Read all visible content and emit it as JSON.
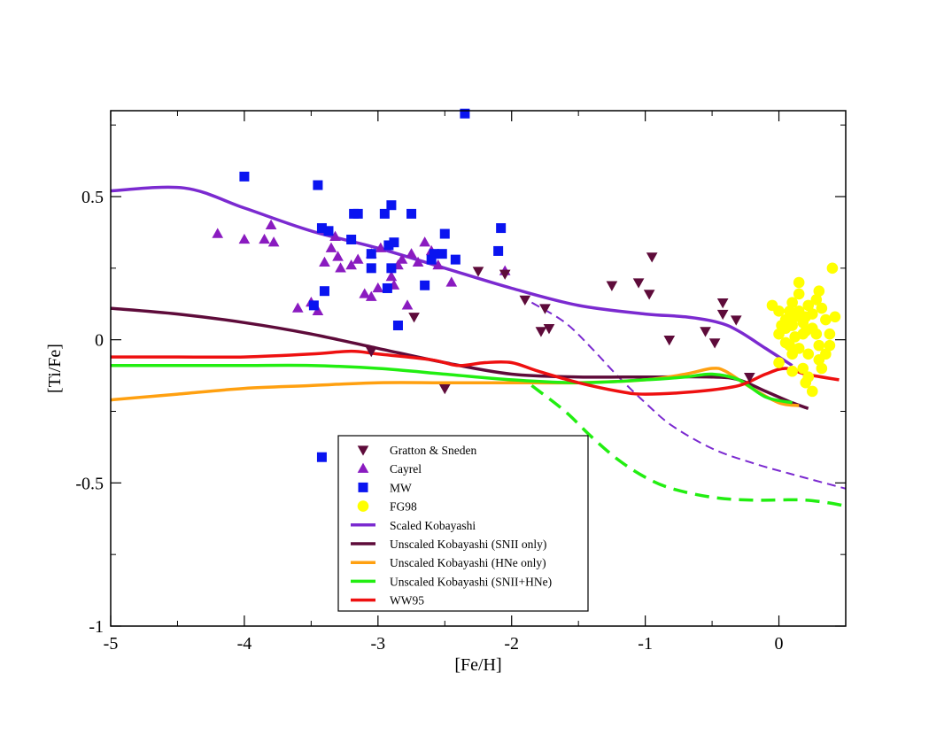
{
  "chart_data": {
    "type": "scatter",
    "title": "",
    "xlabel": "[Fe/H]",
    "ylabel": "[Ti/Fe]",
    "xlim": [
      -5,
      0.5
    ],
    "ylim": [
      -1,
      0.8
    ],
    "xticks": [
      -5,
      -4,
      -3,
      -2,
      -1,
      0
    ],
    "xtick_labels": [
      "-5",
      "-4",
      "-3",
      "-2",
      "-1",
      "0"
    ],
    "yticks": [
      -1,
      -0.5,
      0,
      0.5
    ],
    "ytick_labels": [
      "-1",
      "-0.5",
      "0",
      "0.5"
    ],
    "grid": false,
    "legend_position": "lower-center",
    "series": [
      {
        "name": "Gratton & Sneden",
        "kind": "scatter",
        "marker": "triangle-down",
        "color": "#5e0b3a",
        "points": [
          [
            -2.25,
            0.24
          ],
          [
            -2.05,
            0.23
          ],
          [
            -1.9,
            0.14
          ],
          [
            -1.75,
            0.11
          ],
          [
            -1.78,
            0.03
          ],
          [
            -1.72,
            0.04
          ],
          [
            -1.25,
            0.19
          ],
          [
            -1.05,
            0.2
          ],
          [
            -0.95,
            0.29
          ],
          [
            -0.97,
            0.16
          ],
          [
            -0.82,
            0.0
          ],
          [
            -0.55,
            0.03
          ],
          [
            -0.48,
            -0.01
          ],
          [
            -0.42,
            0.13
          ],
          [
            -0.42,
            0.09
          ],
          [
            -0.32,
            0.07
          ],
          [
            -0.22,
            -0.13
          ],
          [
            -2.73,
            0.08
          ],
          [
            -3.05,
            -0.04
          ],
          [
            -2.5,
            -0.17
          ]
        ]
      },
      {
        "name": "Cayrel",
        "kind": "scatter",
        "marker": "triangle-up",
        "color": "#8a1bc0",
        "points": [
          [
            -4.2,
            0.37
          ],
          [
            -4.0,
            0.35
          ],
          [
            -3.85,
            0.35
          ],
          [
            -3.8,
            0.4
          ],
          [
            -3.78,
            0.34
          ],
          [
            -3.6,
            0.11
          ],
          [
            -3.5,
            0.13
          ],
          [
            -3.45,
            0.1
          ],
          [
            -3.4,
            0.27
          ],
          [
            -3.35,
            0.32
          ],
          [
            -3.32,
            0.36
          ],
          [
            -3.3,
            0.29
          ],
          [
            -3.28,
            0.25
          ],
          [
            -3.2,
            0.26
          ],
          [
            -3.15,
            0.28
          ],
          [
            -3.1,
            0.16
          ],
          [
            -3.05,
            0.15
          ],
          [
            -3.0,
            0.18
          ],
          [
            -2.98,
            0.32
          ],
          [
            -2.9,
            0.22
          ],
          [
            -2.88,
            0.19
          ],
          [
            -2.85,
            0.26
          ],
          [
            -2.82,
            0.28
          ],
          [
            -2.78,
            0.12
          ],
          [
            -2.75,
            0.3
          ],
          [
            -2.7,
            0.27
          ],
          [
            -2.65,
            0.34
          ],
          [
            -2.6,
            0.31
          ],
          [
            -2.55,
            0.26
          ],
          [
            -2.45,
            0.2
          ],
          [
            -2.05,
            0.24
          ],
          [
            -3.05,
            0.3
          ]
        ]
      },
      {
        "name": "MW",
        "kind": "scatter",
        "marker": "square",
        "color": "#0a14f0",
        "points": [
          [
            -4.0,
            0.57
          ],
          [
            -3.45,
            0.54
          ],
          [
            -3.42,
            0.39
          ],
          [
            -3.37,
            0.38
          ],
          [
            -3.4,
            0.17
          ],
          [
            -3.48,
            0.12
          ],
          [
            -3.2,
            0.35
          ],
          [
            -3.18,
            0.44
          ],
          [
            -3.15,
            0.44
          ],
          [
            -3.05,
            0.3
          ],
          [
            -3.05,
            0.25
          ],
          [
            -2.95,
            0.44
          ],
          [
            -2.9,
            0.47
          ],
          [
            -2.92,
            0.33
          ],
          [
            -2.88,
            0.34
          ],
          [
            -2.9,
            0.25
          ],
          [
            -2.93,
            0.18
          ],
          [
            -2.85,
            0.05
          ],
          [
            -2.75,
            0.44
          ],
          [
            -2.65,
            0.19
          ],
          [
            -2.6,
            0.28
          ],
          [
            -2.58,
            0.3
          ],
          [
            -2.5,
            0.37
          ],
          [
            -2.52,
            0.3
          ],
          [
            -2.42,
            0.28
          ],
          [
            -2.1,
            0.31
          ],
          [
            -2.08,
            0.39
          ],
          [
            -2.35,
            0.79
          ],
          [
            -3.42,
            -0.41
          ]
        ]
      },
      {
        "name": "FG98",
        "kind": "scatter",
        "marker": "circle",
        "color": "#ffff00",
        "points": [
          [
            -0.05,
            0.12
          ],
          [
            0.0,
            0.1
          ],
          [
            0.02,
            0.05
          ],
          [
            0.05,
            0.07
          ],
          [
            0.08,
            0.1
          ],
          [
            0.1,
            0.13
          ],
          [
            0.12,
            0.08
          ],
          [
            0.15,
            0.2
          ],
          [
            0.15,
            0.16
          ],
          [
            0.18,
            0.06
          ],
          [
            0.2,
            0.03
          ],
          [
            0.22,
            0.12
          ],
          [
            0.25,
            0.09
          ],
          [
            0.28,
            0.14
          ],
          [
            0.3,
            0.17
          ],
          [
            0.32,
            0.11
          ],
          [
            0.35,
            0.07
          ],
          [
            0.38,
            0.02
          ],
          [
            0.4,
            0.25
          ],
          [
            0.42,
            0.08
          ],
          [
            0.0,
            -0.08
          ],
          [
            0.05,
            -0.01
          ],
          [
            0.1,
            -0.05
          ],
          [
            0.15,
            -0.03
          ],
          [
            0.18,
            -0.1
          ],
          [
            0.22,
            -0.13
          ],
          [
            0.25,
            -0.18
          ],
          [
            0.3,
            -0.07
          ],
          [
            0.35,
            -0.05
          ],
          [
            0.2,
            -0.15
          ],
          [
            0.28,
            0.02
          ],
          [
            0.12,
            0.01
          ],
          [
            0.08,
            -0.02
          ],
          [
            0.3,
            -0.02
          ],
          [
            0.38,
            -0.02
          ],
          [
            0.25,
            0.04
          ],
          [
            0.1,
            0.05
          ],
          [
            0.15,
            0.1
          ],
          [
            0.18,
            0.02
          ],
          [
            0.05,
            0.04
          ],
          [
            0.22,
            -0.05
          ],
          [
            0.1,
            -0.11
          ],
          [
            0.0,
            0.02
          ],
          [
            0.32,
            -0.1
          ],
          [
            0.2,
            0.08
          ]
        ]
      },
      {
        "name": "Scaled Kobayashi",
        "kind": "line",
        "style": "solid",
        "color": "#7b2ad0",
        "points": [
          [
            -5.0,
            0.52
          ],
          [
            -4.45,
            0.53
          ],
          [
            -4.0,
            0.46
          ],
          [
            -3.5,
            0.38
          ],
          [
            -3.0,
            0.32
          ],
          [
            -2.5,
            0.25
          ],
          [
            -2.0,
            0.18
          ],
          [
            -1.5,
            0.12
          ],
          [
            -1.0,
            0.09
          ],
          [
            -0.7,
            0.08
          ],
          [
            -0.45,
            0.06
          ],
          [
            -0.3,
            0.03
          ],
          [
            -0.1,
            -0.03
          ],
          [
            0.1,
            -0.09
          ]
        ]
      },
      {
        "name": "Scaled Kobayashi (extension)",
        "kind": "line",
        "style": "dashed",
        "color": "#7b2ad0",
        "points": [
          [
            -1.85,
            0.13
          ],
          [
            -1.6,
            0.06
          ],
          [
            -1.4,
            -0.03
          ],
          [
            -1.2,
            -0.13
          ],
          [
            -1.0,
            -0.22
          ],
          [
            -0.8,
            -0.3
          ],
          [
            -0.5,
            -0.38
          ],
          [
            -0.2,
            -0.43
          ],
          [
            0.1,
            -0.47
          ],
          [
            0.5,
            -0.52
          ]
        ]
      },
      {
        "name": "Unscaled Kobayashi (SNII only)",
        "kind": "line",
        "style": "solid",
        "color": "#5e0b3a",
        "points": [
          [
            -5.0,
            0.11
          ],
          [
            -4.5,
            0.09
          ],
          [
            -4.0,
            0.06
          ],
          [
            -3.5,
            0.02
          ],
          [
            -3.0,
            -0.03
          ],
          [
            -2.5,
            -0.08
          ],
          [
            -2.0,
            -0.12
          ],
          [
            -1.5,
            -0.13
          ],
          [
            -1.0,
            -0.13
          ],
          [
            -0.5,
            -0.13
          ],
          [
            -0.3,
            -0.14
          ],
          [
            -0.1,
            -0.18
          ],
          [
            0.1,
            -0.22
          ],
          [
            0.22,
            -0.24
          ]
        ]
      },
      {
        "name": "Unscaled Kobayashi (HNe only)",
        "kind": "line",
        "style": "solid",
        "color": "#ffa010",
        "points": [
          [
            -5.0,
            -0.21
          ],
          [
            -4.5,
            -0.19
          ],
          [
            -4.0,
            -0.17
          ],
          [
            -3.5,
            -0.16
          ],
          [
            -3.0,
            -0.15
          ],
          [
            -2.5,
            -0.15
          ],
          [
            -2.0,
            -0.15
          ],
          [
            -1.5,
            -0.15
          ],
          [
            -1.0,
            -0.14
          ],
          [
            -0.7,
            -0.12
          ],
          [
            -0.5,
            -0.1
          ],
          [
            -0.4,
            -0.11
          ],
          [
            -0.2,
            -0.17
          ],
          [
            0.0,
            -0.22
          ],
          [
            0.15,
            -0.23
          ]
        ]
      },
      {
        "name": "Unscaled Kobayashi (SNII+HNe)",
        "kind": "line",
        "style": "solid",
        "color": "#22ee11",
        "points": [
          [
            -5.0,
            -0.09
          ],
          [
            -4.5,
            -0.09
          ],
          [
            -4.0,
            -0.09
          ],
          [
            -3.5,
            -0.09
          ],
          [
            -3.0,
            -0.1
          ],
          [
            -2.5,
            -0.12
          ],
          [
            -2.0,
            -0.14
          ],
          [
            -1.5,
            -0.15
          ],
          [
            -1.0,
            -0.14
          ],
          [
            -0.7,
            -0.13
          ],
          [
            -0.5,
            -0.12
          ],
          [
            -0.3,
            -0.14
          ],
          [
            -0.1,
            -0.2
          ],
          [
            0.1,
            -0.22
          ]
        ]
      },
      {
        "name": "Unscaled Kobayashi (SNII+HNe) (extension)",
        "kind": "line",
        "style": "dashed",
        "color": "#22ee11",
        "points": [
          [
            -1.85,
            -0.16
          ],
          [
            -1.6,
            -0.25
          ],
          [
            -1.4,
            -0.34
          ],
          [
            -1.2,
            -0.42
          ],
          [
            -1.0,
            -0.48
          ],
          [
            -0.8,
            -0.52
          ],
          [
            -0.5,
            -0.55
          ],
          [
            -0.2,
            -0.56
          ],
          [
            0.2,
            -0.56
          ],
          [
            0.5,
            -0.58
          ]
        ]
      },
      {
        "name": "WW95",
        "kind": "line",
        "style": "solid",
        "color": "#ee1010",
        "points": [
          [
            -5.0,
            -0.06
          ],
          [
            -4.9,
            -0.06
          ],
          [
            -4.5,
            -0.06
          ],
          [
            -4.0,
            -0.06
          ],
          [
            -3.5,
            -0.05
          ],
          [
            -3.2,
            -0.04
          ],
          [
            -3.0,
            -0.05
          ],
          [
            -2.6,
            -0.07
          ],
          [
            -2.4,
            -0.09
          ],
          [
            -2.2,
            -0.08
          ],
          [
            -2.0,
            -0.08
          ],
          [
            -1.8,
            -0.11
          ],
          [
            -1.5,
            -0.15
          ],
          [
            -1.2,
            -0.18
          ],
          [
            -1.0,
            -0.19
          ],
          [
            -0.6,
            -0.18
          ],
          [
            -0.3,
            -0.16
          ],
          [
            -0.1,
            -0.12
          ],
          [
            0.05,
            -0.1
          ],
          [
            0.2,
            -0.12
          ],
          [
            0.45,
            -0.14
          ]
        ]
      }
    ],
    "legend": [
      {
        "label": "Gratton & Sneden",
        "symbol": "triangle-down",
        "color": "#5e0b3a"
      },
      {
        "label": "Cayrel",
        "symbol": "triangle-up",
        "color": "#8a1bc0"
      },
      {
        "label": "MW",
        "symbol": "square",
        "color": "#0a14f0"
      },
      {
        "label": "FG98",
        "symbol": "circle",
        "color": "#ffff00"
      },
      {
        "label": "Scaled Kobayashi",
        "symbol": "line",
        "color": "#7b2ad0"
      },
      {
        "label": "Unscaled Kobayashi (SNII only)",
        "symbol": "line",
        "color": "#5e0b3a"
      },
      {
        "label": "Unscaled Kobayashi (HNe only)",
        "symbol": "line",
        "color": "#ffa010"
      },
      {
        "label": "Unscaled Kobayashi (SNII+HNe)",
        "symbol": "line",
        "color": "#22ee11"
      },
      {
        "label": "WW95",
        "symbol": "line",
        "color": "#ee1010"
      }
    ]
  }
}
